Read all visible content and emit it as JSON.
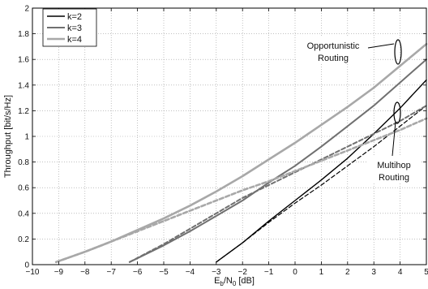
{
  "chart_data": {
    "type": "line",
    "xlabel": {
      "pre": "E",
      "sub1": "b",
      "mid": "/N",
      "sub2": "0",
      "post": " [dB]"
    },
    "ylabel": "Throughput [bit/s/Hz]",
    "xlim": [
      -10,
      5
    ],
    "ylim": [
      0,
      2
    ],
    "xticks": [
      -10,
      -9,
      -8,
      -7,
      -6,
      -5,
      -4,
      -3,
      -2,
      -1,
      0,
      1,
      2,
      3,
      4,
      5
    ],
    "yticks": [
      0,
      0.2,
      0.4,
      0.6,
      0.8,
      1,
      1.2,
      1.4,
      1.6,
      1.8,
      2
    ],
    "ytick_labels": [
      "0",
      "0.2",
      "0.4",
      "0.6",
      "0.8",
      "1",
      "1.2",
      "1.4",
      "1.6",
      "1.8",
      "2"
    ],
    "grid": true,
    "legend_position": "top-left",
    "legend": [
      {
        "label": "k=2",
        "color": "#000000"
      },
      {
        "label": "k=3",
        "color": "#707070"
      },
      {
        "label": "k=4",
        "color": "#a8a8a8"
      }
    ],
    "series": [
      {
        "name": "k=2",
        "group": "Opportunistic Routing",
        "color": "#000000",
        "width": 1.4,
        "dash": "",
        "x": [
          -3,
          -2,
          -1,
          0,
          1,
          2,
          3,
          4,
          5
        ],
        "y": [
          0.02,
          0.17,
          0.34,
          0.5,
          0.66,
          0.83,
          1.02,
          1.22,
          1.44
        ]
      },
      {
        "name": "k=3",
        "group": "Opportunistic Routing",
        "color": "#707070",
        "width": 2.0,
        "dash": "",
        "x": [
          -6.3,
          -5,
          -4,
          -3,
          -2,
          -1,
          0,
          1,
          2,
          3,
          4,
          5
        ],
        "y": [
          0.02,
          0.15,
          0.26,
          0.38,
          0.5,
          0.64,
          0.77,
          0.92,
          1.08,
          1.24,
          1.42,
          1.6
        ]
      },
      {
        "name": "k=4",
        "group": "Opportunistic Routing",
        "color": "#a8a8a8",
        "width": 2.6,
        "dash": "",
        "x": [
          -9.1,
          -8,
          -7,
          -6,
          -5,
          -4,
          -3,
          -2,
          -1,
          0,
          1,
          2,
          3,
          4,
          5
        ],
        "y": [
          0.02,
          0.1,
          0.18,
          0.27,
          0.36,
          0.46,
          0.57,
          0.69,
          0.82,
          0.95,
          1.09,
          1.23,
          1.38,
          1.55,
          1.72
        ]
      },
      {
        "name": "k=2",
        "group": "Multihop Routing",
        "color": "#000000",
        "width": 1.2,
        "dash": "5,3",
        "x": [
          -3,
          -2,
          -1,
          0,
          1,
          2,
          3,
          4,
          5
        ],
        "y": [
          0.02,
          0.17,
          0.33,
          0.48,
          0.62,
          0.77,
          0.92,
          1.08,
          1.24
        ]
      },
      {
        "name": "k=3",
        "group": "Multihop Routing",
        "color": "#707070",
        "width": 2.0,
        "dash": "5,3",
        "x": [
          -6.3,
          -5,
          -4,
          -3,
          -2,
          -1,
          0,
          1,
          2,
          3,
          4,
          5
        ],
        "y": [
          0.02,
          0.16,
          0.28,
          0.4,
          0.52,
          0.62,
          0.72,
          0.82,
          0.92,
          1.02,
          1.12,
          1.24
        ]
      },
      {
        "name": "k=4",
        "group": "Multihop Routing",
        "color": "#a8a8a8",
        "width": 2.6,
        "dash": "5,3",
        "x": [
          -9.1,
          -8,
          -7,
          -6,
          -5,
          -4,
          -3,
          -2,
          -1,
          0,
          1,
          2,
          3,
          4,
          5
        ],
        "y": [
          0.02,
          0.1,
          0.18,
          0.26,
          0.34,
          0.42,
          0.5,
          0.58,
          0.65,
          0.73,
          0.81,
          0.89,
          0.97,
          1.05,
          1.14
        ]
      }
    ],
    "annotations": [
      {
        "lines": [
          "Opportunistic",
          "Routing"
        ]
      },
      {
        "lines": [
          "Multihop",
          "Routing"
        ]
      }
    ]
  }
}
